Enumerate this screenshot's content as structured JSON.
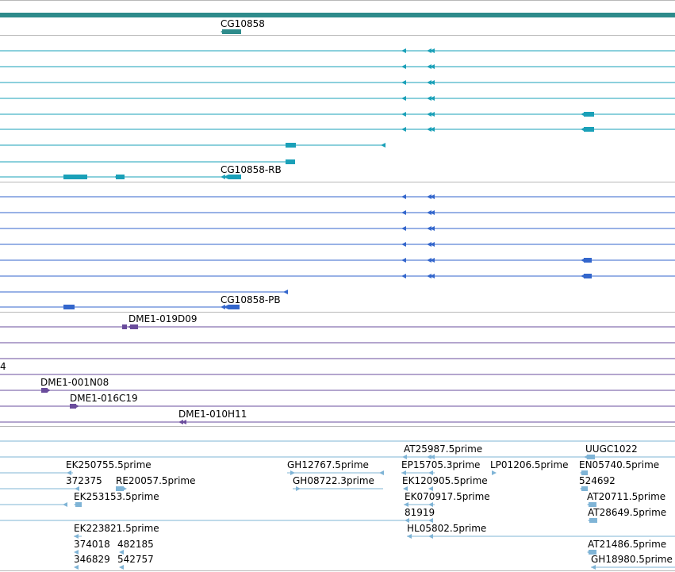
{
  "colors": {
    "gene": "#2e8b8b",
    "transcript_teal": "#1aa0b8",
    "transcript_blue": "#3366cc",
    "clone_purple": "#6a4c9c",
    "est_lightblue": "#7fb4d6",
    "separator": "#b8b8b8"
  },
  "tracks": {
    "gene_label": "CG10858",
    "transcript_rb_label": "CG10858-RB",
    "transcript_pb_label": "CG10858-PB",
    "clone_number_label": "4",
    "clone_labels": [
      "DME1-019D09",
      "DME1-001N08",
      "DME1-016C19",
      "DME1-010H11"
    ],
    "est_labels": [
      "AT25987.5prime",
      "UUGC1022",
      "EK250755.5prime",
      "GH12767.5prime",
      "EP15705.3prime",
      "LP01206.5prime",
      "EN05740.5prime",
      "372375",
      "RE20057.5prime",
      "GH08722.3prime",
      "EK120905.5prime",
      "524692",
      "EK253153.5prime",
      "EK070917.5prime",
      "AT20711.5prime",
      "81919",
      "AT28649.5prime",
      "EK223821.5prime",
      "HL05802.5prime",
      "374018",
      "482185",
      "AT21486.5prime",
      "346829",
      "542757",
      "GH18980.5prime"
    ]
  }
}
